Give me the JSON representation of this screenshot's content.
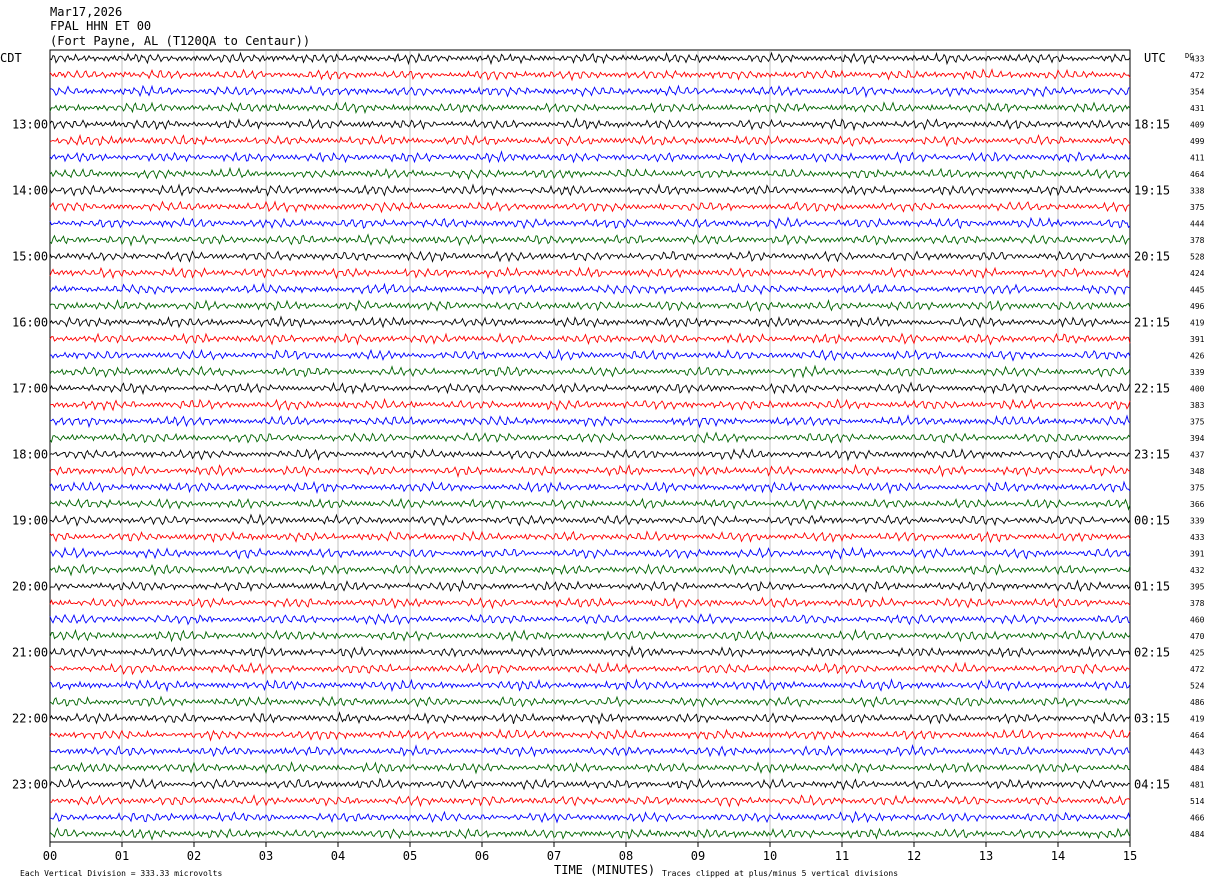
{
  "header": {
    "date": "Mar17,2026",
    "station": "FPAL HHN ET 00",
    "location": "(Fort Payne, AL (T120QA to Centaur))"
  },
  "labels": {
    "left_tz": "CDT",
    "right_tz": "UTC",
    "dc": "DC",
    "bottom_scale": "Each Vertical Division =  333.33 microvolts",
    "bottom_clip": "Traces clipped at plus/minus 5 vertical divisions",
    "xlabel": "TIME (MINUTES)"
  },
  "colors": [
    "#000000",
    "#ff0000",
    "#0000ff",
    "#006400"
  ],
  "chart_data": {
    "type": "line",
    "x_ticks": [
      "00",
      "01",
      "02",
      "03",
      "04",
      "05",
      "06",
      "07",
      "08",
      "09",
      "10",
      "11",
      "12",
      "13",
      "14",
      "15"
    ],
    "xlim": [
      0,
      15
    ],
    "left_hour_labels": [
      "13:00",
      "14:00",
      "15:00",
      "16:00",
      "17:00",
      "18:00",
      "19:00",
      "20:00",
      "21:00",
      "22:00",
      "23:00"
    ],
    "right_hour_labels": [
      "18:15",
      "19:15",
      "20:15",
      "21:15",
      "22:15",
      "23:15",
      "00:15",
      "01:15",
      "02:15",
      "03:15",
      "04:15"
    ],
    "dc_offsets": [
      433,
      472,
      354,
      431,
      409,
      499,
      411,
      464,
      338,
      375,
      444,
      378,
      528,
      424,
      445,
      496,
      419,
      391,
      426,
      339,
      400,
      383,
      375,
      394,
      437,
      348,
      375,
      366,
      339,
      433,
      391,
      432,
      395,
      378,
      460,
      470,
      425,
      472,
      524,
      486,
      419,
      464,
      443,
      484,
      481,
      514,
      466,
      484
    ]
  }
}
